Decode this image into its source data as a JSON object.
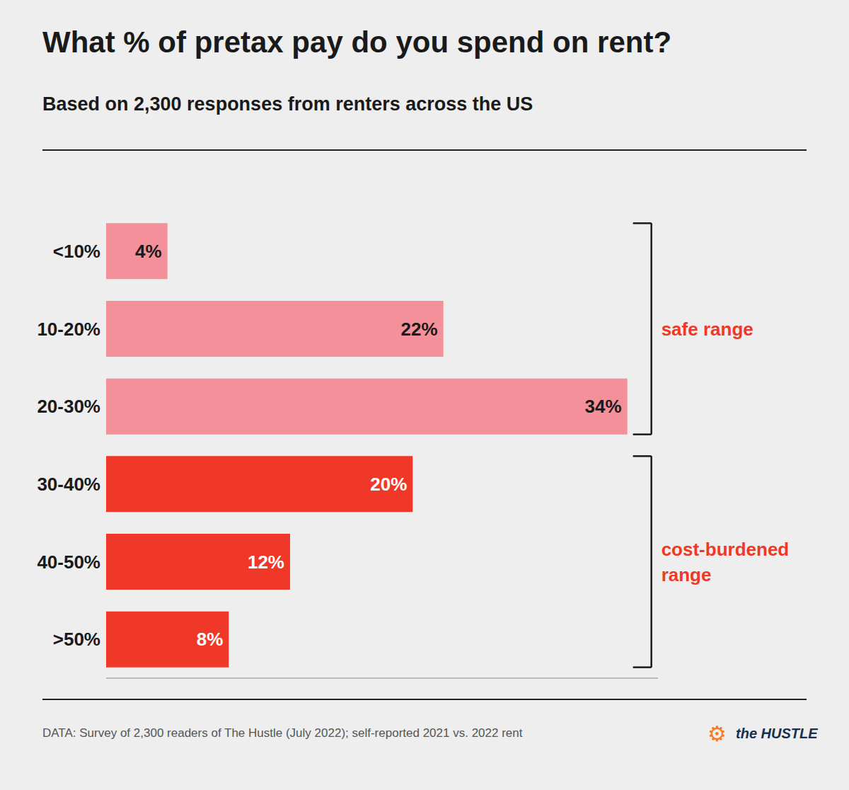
{
  "chart_data": {
    "type": "bar",
    "orientation": "horizontal",
    "title": "What % of pretax pay do you spend on rent?",
    "subtitle": "Based on 2,300 responses from renters across the US",
    "footer": "DATA: Survey of 2,300 readers of The Hustle (July 2022); self-reported 2021 vs. 2022 rent",
    "credits": [
      "⚙",
      "the HUSTLE"
    ],
    "categories": [
      "<10%",
      "10-20%",
      "20-30%",
      "30-40%",
      "40-50%",
      ">50%"
    ],
    "values": [
      4,
      22,
      34,
      20,
      12,
      8
    ],
    "value_labels": [
      "4%",
      "22%",
      "34%",
      "20%",
      "12%",
      "8%"
    ],
    "colors": [
      "#f4909a",
      "#f4909a",
      "#f4909a",
      "#f03828",
      "#f03828",
      "#f03828"
    ],
    "xlim": [
      0,
      36
    ],
    "data_labels": true,
    "tick_labels": "y",
    "grid": false,
    "annotations": [
      {
        "text": "safe range",
        "from": "<10%",
        "to": "20-30%"
      },
      {
        "text": "cost-burdened\nrange",
        "from": "30-40%",
        "to": ">50%"
      }
    ]
  }
}
